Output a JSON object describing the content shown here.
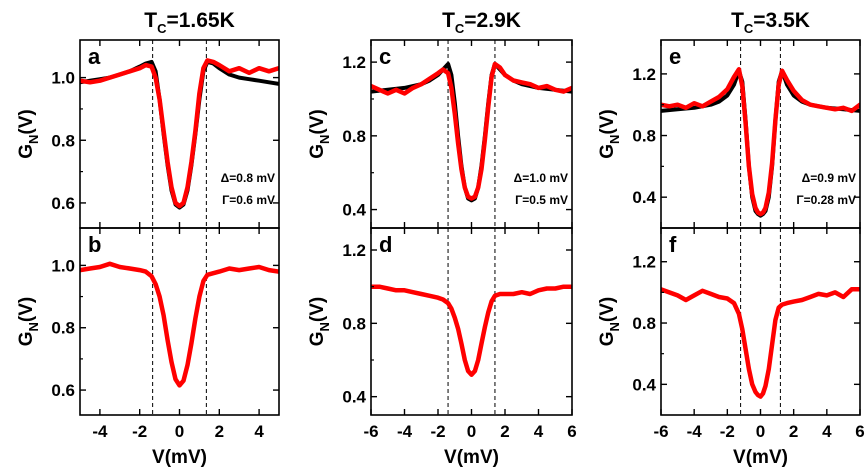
{
  "chart_data": [
    {
      "type": "line",
      "panel": "a",
      "column_title": {
        "prefix": "T",
        "sub": "C",
        "rest": "=1.65K"
      },
      "xlabel": "",
      "ylabel": {
        "prefix": "G",
        "sub": "N",
        "rest": "(V)"
      },
      "xlim": [
        -5,
        5
      ],
      "ylim": [
        0.52,
        1.12
      ],
      "yticks": [
        0.6,
        0.8,
        1.0
      ],
      "ytick_labels": [
        "0.6",
        "0.8",
        "1.0"
      ],
      "xticks": [
        -4,
        -2,
        0,
        2,
        4
      ],
      "vlines": [
        -1.35,
        1.35
      ],
      "annotations": [
        "Δ=0.8 mV",
        "Γ=0.6 mV"
      ],
      "series": [
        {
          "color": "#000000",
          "x": [
            -5,
            -4.5,
            -4,
            -3.5,
            -3,
            -2.5,
            -2,
            -1.7,
            -1.4,
            -1.2,
            -1.0,
            -0.8,
            -0.6,
            -0.4,
            -0.2,
            0,
            0.2,
            0.4,
            0.6,
            0.8,
            1.0,
            1.2,
            1.4,
            1.7,
            2,
            2.5,
            3,
            3.5,
            4,
            4.5,
            5
          ],
          "y": [
            0.985,
            0.99,
            0.995,
            1.0,
            1.01,
            1.02,
            1.035,
            1.045,
            1.05,
            1.02,
            0.93,
            0.82,
            0.72,
            0.64,
            0.595,
            0.585,
            0.595,
            0.64,
            0.72,
            0.82,
            0.93,
            1.02,
            1.05,
            1.045,
            1.03,
            1.01,
            1.0,
            0.995,
            0.99,
            0.985,
            0.98
          ]
        },
        {
          "color": "#ff0000",
          "x": [
            -5,
            -4.5,
            -4,
            -3.5,
            -3,
            -2.5,
            -2,
            -1.7,
            -1.4,
            -1.2,
            -1.0,
            -0.8,
            -0.6,
            -0.4,
            -0.2,
            0,
            0.2,
            0.4,
            0.6,
            0.8,
            1.0,
            1.2,
            1.4,
            1.7,
            2,
            2.5,
            3,
            3.5,
            4,
            4.5,
            5
          ],
          "y": [
            0.99,
            0.985,
            0.99,
            1.0,
            1.01,
            1.02,
            1.03,
            1.04,
            1.035,
            1.0,
            0.93,
            0.83,
            0.73,
            0.65,
            0.6,
            0.59,
            0.6,
            0.65,
            0.73,
            0.83,
            0.95,
            1.03,
            1.055,
            1.05,
            1.04,
            1.02,
            1.03,
            1.015,
            1.03,
            1.02,
            1.03
          ]
        }
      ]
    },
    {
      "type": "line",
      "panel": "b",
      "xlabel": "V(mV)",
      "ylabel": {
        "prefix": "G",
        "sub": "N",
        "rest": "(V)"
      },
      "xlim": [
        -5,
        5
      ],
      "ylim": [
        0.52,
        1.12
      ],
      "yticks": [
        0.6,
        0.8,
        1.0
      ],
      "ytick_labels": [
        "0.6",
        "0.8",
        "1.0"
      ],
      "xticks": [
        -4,
        -2,
        0,
        2,
        4
      ],
      "xtick_labels": [
        "-4",
        "-2",
        "0",
        "2",
        "4"
      ],
      "vlines": [
        -1.35,
        1.35
      ],
      "series": [
        {
          "color": "#ff0000",
          "x": [
            -5,
            -4.5,
            -4,
            -3.5,
            -3,
            -2.5,
            -2,
            -1.7,
            -1.4,
            -1.2,
            -1.0,
            -0.8,
            -0.6,
            -0.4,
            -0.2,
            0,
            0.2,
            0.4,
            0.6,
            0.8,
            1.0,
            1.2,
            1.4,
            1.7,
            2,
            2.5,
            3,
            3.5,
            4,
            4.5,
            5
          ],
          "y": [
            0.985,
            0.99,
            0.995,
            1.005,
            0.995,
            0.99,
            0.985,
            0.98,
            0.965,
            0.94,
            0.9,
            0.84,
            0.76,
            0.69,
            0.635,
            0.615,
            0.63,
            0.68,
            0.75,
            0.83,
            0.9,
            0.95,
            0.97,
            0.975,
            0.98,
            0.99,
            0.985,
            0.99,
            0.995,
            0.985,
            0.98
          ]
        }
      ]
    },
    {
      "type": "line",
      "panel": "c",
      "column_title": {
        "prefix": "T",
        "sub": "C",
        "rest": "=2.9K"
      },
      "xlabel": "",
      "ylabel": {
        "prefix": "G",
        "sub": "N",
        "rest": "(V)"
      },
      "xlim": [
        -6,
        6
      ],
      "ylim": [
        0.3,
        1.32
      ],
      "yticks": [
        0.4,
        0.8,
        1.2
      ],
      "ytick_labels": [
        "0.4",
        "0.8",
        "1.2"
      ],
      "xticks": [
        -6,
        -4,
        -2,
        0,
        2,
        4,
        6
      ],
      "vlines": [
        -1.4,
        1.4
      ],
      "annotations": [
        "Δ=1.0 mV",
        "Γ=0.5 mV"
      ],
      "series": [
        {
          "color": "#000000",
          "x": [
            -6,
            -5,
            -4,
            -3,
            -2.5,
            -2,
            -1.7,
            -1.4,
            -1.2,
            -1.0,
            -0.8,
            -0.6,
            -0.4,
            -0.2,
            0,
            0.2,
            0.4,
            0.6,
            0.8,
            1.0,
            1.2,
            1.4,
            1.7,
            2,
            2.5,
            3,
            4,
            5,
            6
          ],
          "y": [
            1.04,
            1.05,
            1.06,
            1.08,
            1.1,
            1.13,
            1.16,
            1.19,
            1.13,
            0.98,
            0.8,
            0.64,
            0.52,
            0.46,
            0.45,
            0.46,
            0.52,
            0.64,
            0.8,
            0.98,
            1.13,
            1.19,
            1.16,
            1.13,
            1.1,
            1.08,
            1.06,
            1.05,
            1.04
          ]
        },
        {
          "color": "#ff0000",
          "x": [
            -6,
            -5.5,
            -5,
            -4.5,
            -4,
            -3.5,
            -3,
            -2.5,
            -2,
            -1.7,
            -1.4,
            -1.2,
            -1.0,
            -0.8,
            -0.6,
            -0.4,
            -0.2,
            0,
            0.2,
            0.4,
            0.6,
            0.8,
            1.0,
            1.2,
            1.4,
            1.7,
            2,
            2.5,
            3,
            3.5,
            4,
            4.5,
            5,
            5.5,
            6
          ],
          "y": [
            1.07,
            1.05,
            1.03,
            1.05,
            1.03,
            1.06,
            1.08,
            1.11,
            1.14,
            1.16,
            1.14,
            1.06,
            0.92,
            0.76,
            0.62,
            0.52,
            0.47,
            0.46,
            0.47,
            0.52,
            0.62,
            0.78,
            0.96,
            1.12,
            1.19,
            1.17,
            1.13,
            1.1,
            1.09,
            1.08,
            1.06,
            1.07,
            1.05,
            1.04,
            1.06
          ]
        }
      ]
    },
    {
      "type": "line",
      "panel": "d",
      "xlabel": "V(mV)",
      "ylabel": {
        "prefix": "G",
        "sub": "N",
        "rest": "(V)"
      },
      "xlim": [
        -6,
        6
      ],
      "ylim": [
        0.3,
        1.32
      ],
      "yticks": [
        0.4,
        0.8,
        1.2
      ],
      "ytick_labels": [
        "0.4",
        "0.8",
        "1.2"
      ],
      "xticks": [
        -6,
        -4,
        -2,
        0,
        2,
        4,
        6
      ],
      "xtick_labels": [
        "-6",
        "-4",
        "-2",
        "0",
        "2",
        "4",
        "6"
      ],
      "vlines": [
        -1.4,
        1.4
      ],
      "series": [
        {
          "color": "#ff0000",
          "x": [
            -6,
            -5.5,
            -5,
            -4.5,
            -4,
            -3.5,
            -3,
            -2.5,
            -2,
            -1.7,
            -1.4,
            -1.2,
            -1.0,
            -0.8,
            -0.6,
            -0.4,
            -0.2,
            0,
            0.2,
            0.4,
            0.6,
            0.8,
            1.0,
            1.2,
            1.4,
            1.7,
            2,
            2.5,
            3,
            3.5,
            4,
            4.5,
            5,
            5.5,
            6
          ],
          "y": [
            1.0,
            1.0,
            0.99,
            0.98,
            0.98,
            0.97,
            0.96,
            0.95,
            0.94,
            0.93,
            0.91,
            0.88,
            0.83,
            0.77,
            0.69,
            0.6,
            0.54,
            0.52,
            0.54,
            0.6,
            0.69,
            0.78,
            0.86,
            0.92,
            0.95,
            0.96,
            0.96,
            0.96,
            0.97,
            0.96,
            0.98,
            0.99,
            0.99,
            1.0,
            1.0
          ]
        }
      ]
    },
    {
      "type": "line",
      "panel": "e",
      "column_title": {
        "prefix": "T",
        "sub": "C",
        "rest": "=3.5K"
      },
      "xlabel": "",
      "ylabel": {
        "prefix": "G",
        "sub": "N",
        "rest": "(V)"
      },
      "xlim": [
        -6,
        6
      ],
      "ylim": [
        0.2,
        1.42
      ],
      "yticks": [
        0.4,
        0.8,
        1.2
      ],
      "ytick_labels": [
        "0.4",
        "0.8",
        "1.2"
      ],
      "xticks": [
        -6,
        -4,
        -2,
        0,
        2,
        4,
        6
      ],
      "vlines": [
        -1.2,
        1.2
      ],
      "annotations": [
        "Δ=0.9 mV",
        "Γ=0.28 mV"
      ],
      "series": [
        {
          "color": "#000000",
          "x": [
            -6,
            -5,
            -4,
            -3,
            -2.5,
            -2,
            -1.6,
            -1.3,
            -1.1,
            -0.9,
            -0.7,
            -0.5,
            -0.3,
            -0.15,
            0,
            0.15,
            0.3,
            0.5,
            0.7,
            0.9,
            1.1,
            1.3,
            1.6,
            2,
            2.5,
            3,
            4,
            5,
            6
          ],
          "y": [
            0.96,
            0.97,
            0.98,
            1.0,
            1.02,
            1.06,
            1.13,
            1.22,
            1.15,
            0.9,
            0.6,
            0.4,
            0.31,
            0.29,
            0.28,
            0.29,
            0.31,
            0.4,
            0.6,
            0.9,
            1.15,
            1.22,
            1.13,
            1.06,
            1.02,
            1.0,
            0.98,
            0.97,
            0.96
          ]
        },
        {
          "color": "#ff0000",
          "x": [
            -6,
            -5.5,
            -5,
            -4.5,
            -4,
            -3.5,
            -3,
            -2.5,
            -2,
            -1.6,
            -1.3,
            -1.1,
            -0.9,
            -0.7,
            -0.5,
            -0.3,
            -0.15,
            0,
            0.15,
            0.3,
            0.5,
            0.7,
            0.9,
            1.1,
            1.3,
            1.6,
            2,
            2.5,
            3,
            3.5,
            4,
            4.5,
            5,
            5.5,
            6
          ],
          "y": [
            1.0,
            0.99,
            1.0,
            0.98,
            1.01,
            0.99,
            1.02,
            1.05,
            1.1,
            1.18,
            1.23,
            1.12,
            0.88,
            0.6,
            0.42,
            0.33,
            0.3,
            0.29,
            0.3,
            0.33,
            0.43,
            0.62,
            0.9,
            1.13,
            1.22,
            1.16,
            1.09,
            1.03,
            1.0,
            0.99,
            0.98,
            0.97,
            0.98,
            0.96,
            1.0
          ]
        }
      ]
    },
    {
      "type": "line",
      "panel": "f",
      "xlabel": "V(mV)",
      "ylabel": {
        "prefix": "G",
        "sub": "N",
        "rest": "(V)"
      },
      "xlim": [
        -6,
        6
      ],
      "ylim": [
        0.2,
        1.42
      ],
      "yticks": [
        0.4,
        0.8,
        1.2
      ],
      "ytick_labels": [
        "0.4",
        "0.8",
        "1.2"
      ],
      "xticks": [
        -6,
        -4,
        -2,
        0,
        2,
        4,
        6
      ],
      "xtick_labels": [
        "-6",
        "-4",
        "-2",
        "0",
        "2",
        "4",
        "6"
      ],
      "vlines": [
        -1.2,
        1.2
      ],
      "series": [
        {
          "color": "#ff0000",
          "x": [
            -6,
            -5.5,
            -5,
            -4.5,
            -4,
            -3.5,
            -3,
            -2.5,
            -2,
            -1.6,
            -1.3,
            -1.1,
            -0.9,
            -0.7,
            -0.5,
            -0.3,
            -0.15,
            0,
            0.15,
            0.3,
            0.5,
            0.7,
            0.9,
            1.1,
            1.3,
            1.6,
            2,
            2.5,
            3,
            3.5,
            4,
            4.5,
            5,
            5.5,
            6
          ],
          "y": [
            1.02,
            1.0,
            0.98,
            0.95,
            0.98,
            1.01,
            0.99,
            0.97,
            0.96,
            0.93,
            0.86,
            0.76,
            0.63,
            0.5,
            0.4,
            0.35,
            0.33,
            0.32,
            0.34,
            0.39,
            0.5,
            0.66,
            0.82,
            0.9,
            0.92,
            0.93,
            0.94,
            0.95,
            0.97,
            0.99,
            0.98,
            1.0,
            0.97,
            1.02,
            1.02
          ]
        }
      ]
    }
  ]
}
